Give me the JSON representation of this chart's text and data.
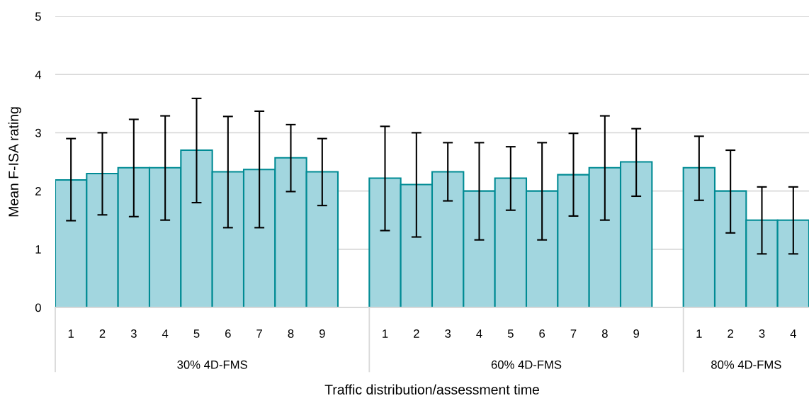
{
  "chart_data": {
    "type": "bar",
    "xlabel": "Traffic distribution/assessment time",
    "ylabel": "Mean F-ISA rating",
    "categories": [
      "1",
      "2",
      "3",
      "4",
      "5",
      "6",
      "7",
      "8",
      "9",
      null,
      "1",
      "2",
      "3",
      "4",
      "5",
      "6",
      "7",
      "8",
      "9",
      null,
      "1",
      "2",
      "3",
      "4"
    ],
    "series": [
      {
        "color": "#a2d6df",
        "values": [
          2.19,
          2.3,
          2.4,
          2.4,
          2.7,
          2.33,
          2.37,
          2.57,
          2.33,
          null,
          2.22,
          2.11,
          2.33,
          2.0,
          2.22,
          2.0,
          2.28,
          2.4,
          2.5,
          null,
          2.4,
          2.0,
          1.5,
          1.5
        ],
        "errors": [
          [
            1.49,
            2.9
          ],
          [
            1.59,
            3.0
          ],
          [
            1.56,
            3.23
          ],
          [
            1.5,
            3.29
          ],
          [
            1.8,
            3.59
          ],
          [
            1.37,
            3.28
          ],
          [
            1.37,
            3.37
          ],
          [
            1.99,
            3.14
          ],
          [
            1.75,
            2.9
          ],
          null,
          [
            1.32,
            3.11
          ],
          [
            1.21,
            3.0
          ],
          [
            1.83,
            2.83
          ],
          [
            1.16,
            2.83
          ],
          [
            1.67,
            2.76
          ],
          [
            1.16,
            2.83
          ],
          [
            1.57,
            2.99
          ],
          [
            1.5,
            3.29
          ],
          [
            1.91,
            3.07
          ],
          null,
          [
            1.84,
            2.94
          ],
          [
            1.28,
            2.7
          ],
          [
            0.92,
            2.07
          ],
          [
            0.92,
            2.07
          ]
        ]
      }
    ],
    "annotations": [
      "30% 4D-FMS",
      "60% 4D-FMS",
      "80% 4D-FMS"
    ],
    "ylim": [
      0,
      5
    ],
    "yticks": [
      0,
      1,
      2,
      3,
      4,
      5
    ],
    "grid": "y"
  }
}
